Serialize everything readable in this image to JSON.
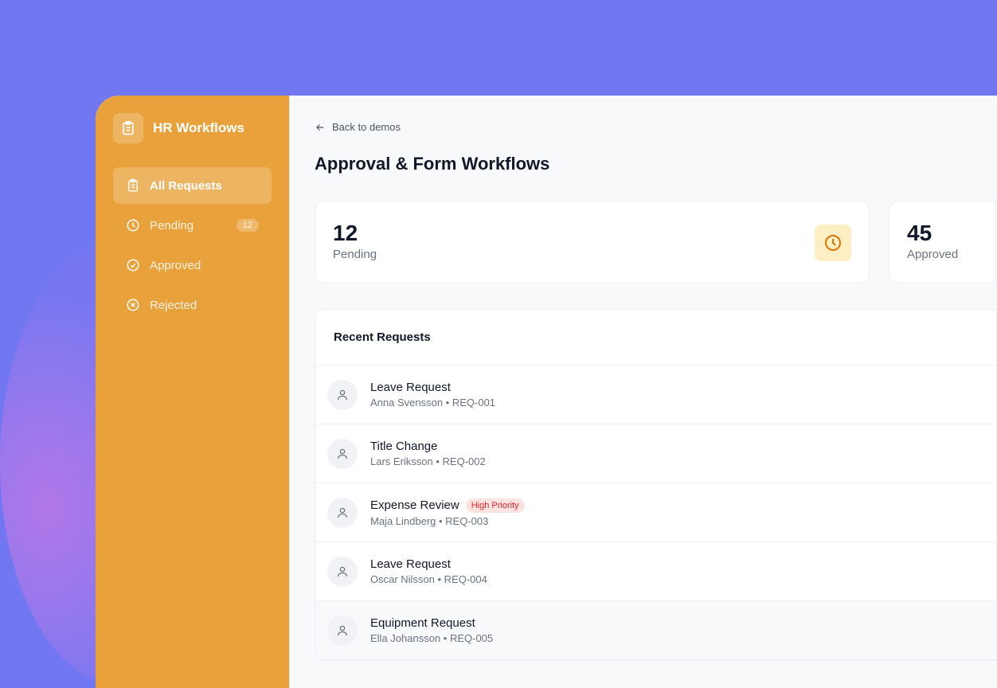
{
  "app": {
    "name": "HR Workflows",
    "brand_icon": "clipboard-icon"
  },
  "sidebar": {
    "items": [
      {
        "label": "All Requests",
        "icon": "clipboard-icon",
        "active": true
      },
      {
        "label": "Pending",
        "icon": "clock-icon",
        "badge": "12"
      },
      {
        "label": "Approved",
        "icon": "check-circle-icon"
      },
      {
        "label": "Rejected",
        "icon": "x-circle-icon"
      }
    ]
  },
  "main": {
    "back_label": "Back to demos",
    "title": "Approval & Form Workflows",
    "stats": [
      {
        "value": "12",
        "label": "Pending",
        "icon": "clock-icon"
      },
      {
        "value": "45",
        "label": "Approved"
      }
    ],
    "recent": {
      "title": "Recent Requests",
      "rows": [
        {
          "title": "Leave Request",
          "person": "Anna Svensson",
          "id": "REQ-001",
          "sub": "Anna Svensson • REQ-001"
        },
        {
          "title": "Title Change",
          "person": "Lars Eriksson",
          "id": "REQ-002",
          "sub": "Lars Eriksson • REQ-002"
        },
        {
          "title": "Expense Review",
          "badge": "High Priority",
          "person": "Maja Lindberg",
          "id": "REQ-003",
          "sub": "Maja Lindberg • REQ-003"
        },
        {
          "title": "Leave Request",
          "person": "Oscar Nilsson",
          "id": "REQ-004",
          "sub": "Oscar Nilsson • REQ-004"
        },
        {
          "title": "Equipment Request",
          "person": "Ella Johansson",
          "id": "REQ-005",
          "sub": "Ella Johansson • REQ-005"
        }
      ]
    }
  },
  "colors": {
    "sidebar": "#e9a23b",
    "background": "#7177f0",
    "priority": "#dc2626"
  }
}
